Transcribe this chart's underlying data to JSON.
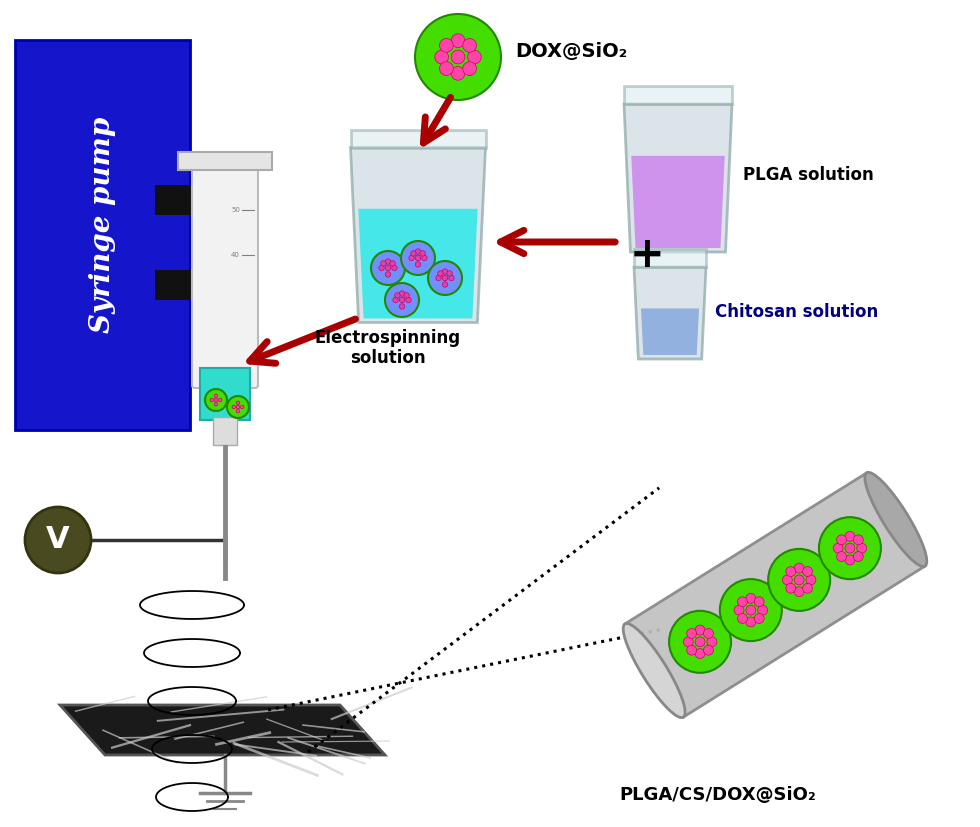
{
  "bg_color": "#ffffff",
  "syringe_pump_text": "Syringe pump",
  "dox_label": "DOX@SiO₂",
  "plga_label": "PLGA solution",
  "chitosan_label": "Chitosan solution",
  "electrospin_label": "Electrospinning\nsolution",
  "nanofiber_label": "PLGA/CS/DOX@SiO₂",
  "voltage_label": "V",
  "pump_blue": "#1515cc",
  "beaker_glass": "#c8dce0",
  "plga_liquid": "#cc88ee",
  "chitosan_liquid": "#88aadd",
  "electrospin_liquid": "#30e8e8",
  "arrow_color": "#aa0000",
  "tube_body": "#b8b8b8",
  "green_color": "#44dd00",
  "pink_color": "#ff44aa",
  "voltage_color": "#4a4a20"
}
